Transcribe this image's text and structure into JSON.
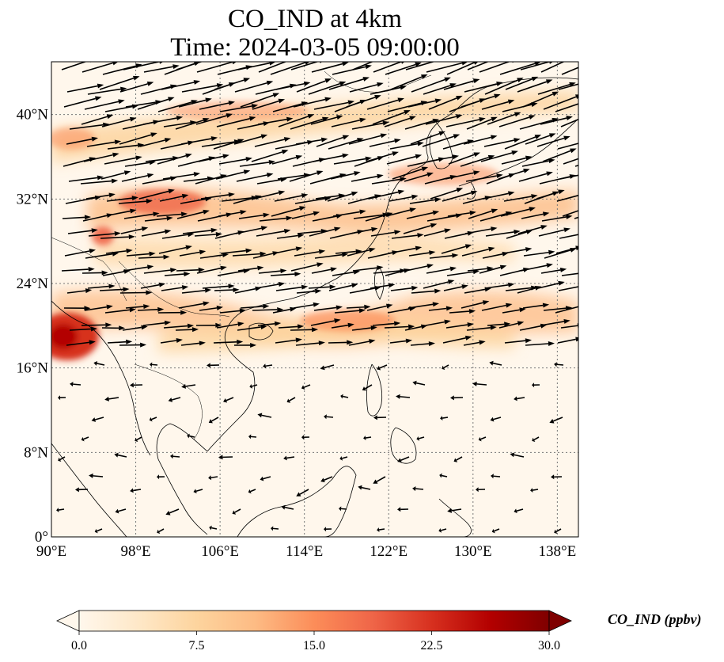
{
  "figure": {
    "title_line1": "CO_IND at 4km",
    "title_line2": "Time: 2024-03-05 09:00:00"
  },
  "map": {
    "lon_range": [
      90,
      140
    ],
    "lat_range": [
      0,
      45
    ],
    "lon_ticks": [
      {
        "value": 90,
        "label": "90°E"
      },
      {
        "value": 98,
        "label": "98°E"
      },
      {
        "value": 106,
        "label": "106°E"
      },
      {
        "value": 114,
        "label": "114°E"
      },
      {
        "value": 122,
        "label": "122°E"
      },
      {
        "value": 130,
        "label": "130°E"
      },
      {
        "value": 138,
        "label": "138°E"
      }
    ],
    "lat_ticks": [
      {
        "value": 0,
        "label": "0°"
      },
      {
        "value": 8,
        "label": "8°N"
      },
      {
        "value": 16,
        "label": "16°N"
      },
      {
        "value": 24,
        "label": "24°N"
      },
      {
        "value": 32,
        "label": "32°N"
      },
      {
        "value": 40,
        "label": "40°N"
      }
    ],
    "gridlines": "dotted",
    "field_colormap": "OrRd",
    "vector_color": "#000000"
  },
  "colorbar": {
    "label": "CO_IND (ppbv)",
    "min": 0.0,
    "max": 30.0,
    "extend": "both",
    "ticks": [
      {
        "value": 0.0,
        "label": "0.0"
      },
      {
        "value": 7.5,
        "label": "7.5"
      },
      {
        "value": 15.0,
        "label": "15.0"
      },
      {
        "value": 22.5,
        "label": "22.5"
      },
      {
        "value": 30.0,
        "label": "30.0"
      }
    ],
    "colors": [
      "#fff7ec",
      "#fee8c8",
      "#fdd49e",
      "#fdbb84",
      "#fc8d59",
      "#ef6548",
      "#d7301f",
      "#b30000",
      "#7f0000"
    ]
  }
}
